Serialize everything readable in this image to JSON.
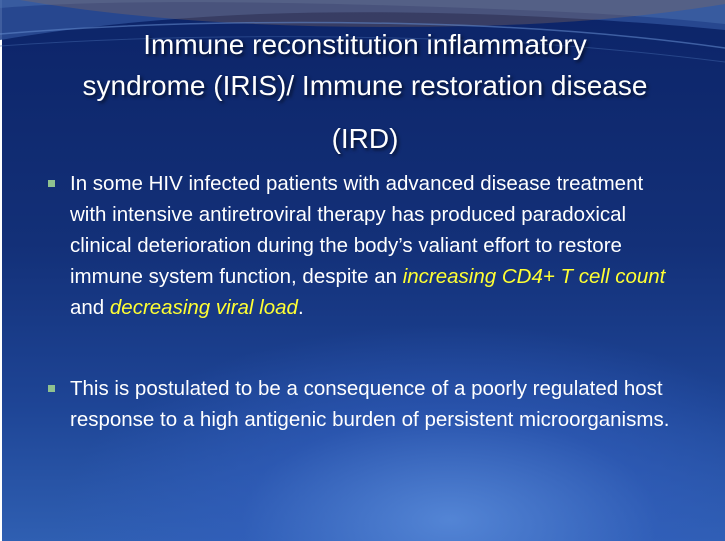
{
  "title": {
    "line1": "Immune reconstitution inflammatory",
    "line2": "syndrome (IRIS)/ Immune restoration disease",
    "line3": "(IRD)"
  },
  "bullets": [
    {
      "text_before": "In some HIV infected patients with advanced disease treatment  with intensive antiretroviral therapy has produced paradoxical clinical deterioration during the body’s valiant effort to restore immune system function, despite an ",
      "highlight1": "increasing CD4+ T cell count",
      "text_mid": " and ",
      "highlight2": "decreasing viral load",
      "text_end": "."
    },
    {
      "text": "This is postulated to be a consequence of a poorly regulated host response to a high antigenic burden of persistent microorganisms."
    }
  ],
  "colors": {
    "background": "#133078",
    "title_text": "#ffffff",
    "body_text": "#ffffff",
    "highlight": "#ffff33",
    "bullet_marker": "#8fc18f"
  }
}
